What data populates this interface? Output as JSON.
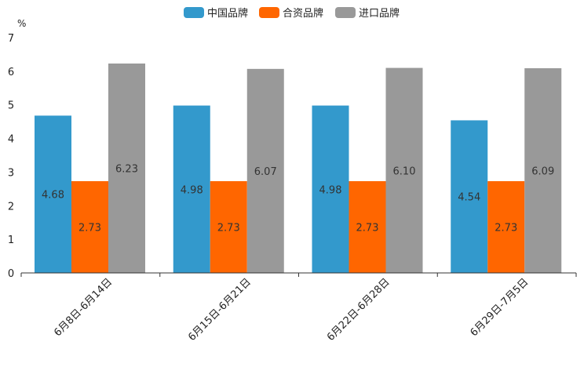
{
  "chart_data": {
    "type": "bar",
    "title": "",
    "unit_label": "%",
    "xlabel": "",
    "ylabel": "",
    "ylim": [
      0,
      7
    ],
    "yticks": [
      "0",
      "1",
      "2",
      "3",
      "4",
      "5",
      "6",
      "7"
    ],
    "categories": [
      "6月8日-6月14日",
      "6月15日-6月21日",
      "6月22日-6月28日",
      "6月29日-7月5日"
    ],
    "series": [
      {
        "name": "中国品牌",
        "color": "#3399CC",
        "values": [
          4.68,
          4.98,
          4.98,
          4.54
        ],
        "labels": [
          "4.68",
          "4.98",
          "4.98",
          "4.54"
        ]
      },
      {
        "name": "合资品牌",
        "color": "#FF6600",
        "values": [
          2.73,
          2.73,
          2.73,
          2.73
        ],
        "labels": [
          "2.73",
          "2.73",
          "2.73",
          "2.73"
        ]
      },
      {
        "name": "进口品牌",
        "color": "#999999",
        "values": [
          6.23,
          6.07,
          6.1,
          6.09
        ],
        "labels": [
          "6.23",
          "6.07",
          "6.10",
          "6.09"
        ]
      }
    ],
    "legend_position": "top-center",
    "grid": false
  }
}
